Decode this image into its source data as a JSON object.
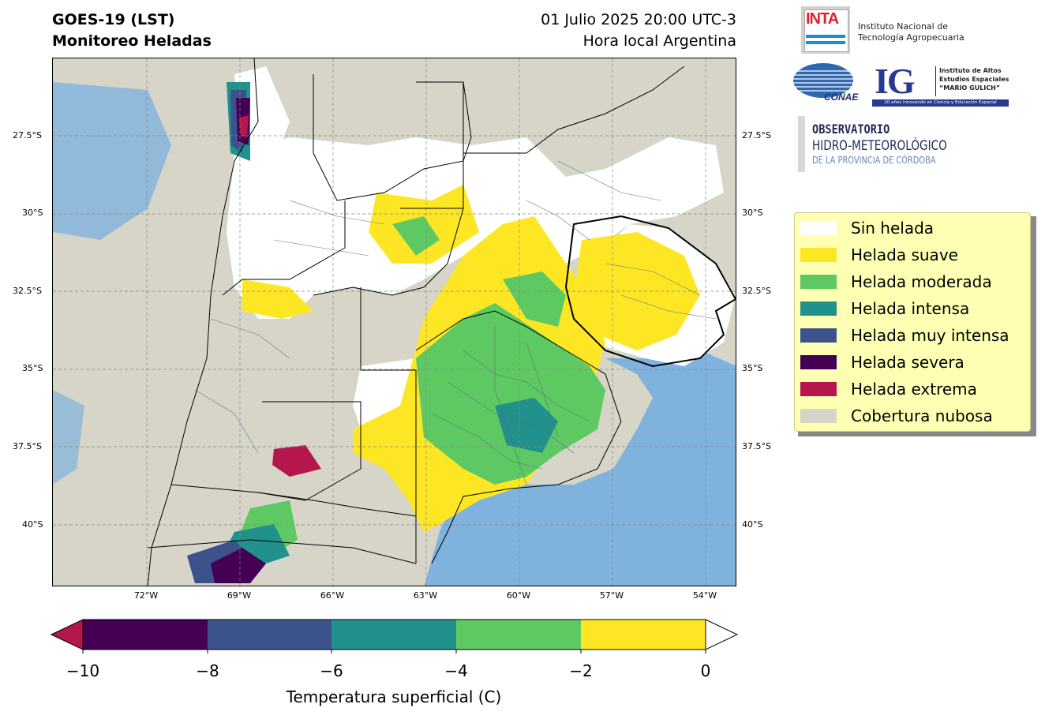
{
  "header": {
    "title_line1": "GOES-19 (LST)",
    "title_line2": "Monitoreo Heladas",
    "datetime": "01 Julio 2025 20:00 UTC-3",
    "timezone_note": "Hora local Argentina"
  },
  "map": {
    "lat_labels": [
      "27.5°S",
      "30°S",
      "32.5°S",
      "35°S",
      "37.5°S",
      "40°S"
    ],
    "lon_labels": [
      "72°W",
      "69°W",
      "66°W",
      "63°W",
      "60°W",
      "57°W",
      "54°W"
    ],
    "colors": {
      "cloud": "#d6d5c8",
      "ocean": "#7fb2dd",
      "no_frost": "#ffffff",
      "mild": "#fde725",
      "moderate": "#5ec962",
      "intense": "#21918c",
      "very_intense": "#3b528b",
      "severe": "#440154",
      "extreme": "#b5164b"
    }
  },
  "logos": {
    "inta_word": "INTA",
    "inta_name_line1": "Instituto Nacional de",
    "inta_name_line2": "Tecnología Agropecuaria",
    "conae_word": "CONAE",
    "ig_letters": "IG",
    "ig_line1": "Instituto de Altos",
    "ig_line2": "Estudios Espaciales",
    "ig_line3": "“MARIO GULICH”",
    "ig_band": "20 años innovando en Ciencia y Educación Espacial",
    "obs_line1": "OBSERVATORIO",
    "obs_line2": "HIDRO-METEOROLÓGICO",
    "obs_line3": "DE LA PROVINCIA DE CÓRDOBA"
  },
  "legend": {
    "items": [
      {
        "label": "Sin helada",
        "color": "#ffffff"
      },
      {
        "label": "Helada suave",
        "color": "#fde725"
      },
      {
        "label": "Helada moderada",
        "color": "#5ec962"
      },
      {
        "label": "Helada intensa",
        "color": "#21918c"
      },
      {
        "label": "Helada muy intensa",
        "color": "#3b528b"
      },
      {
        "label": "Helada severa",
        "color": "#440154"
      },
      {
        "label": "Helada extrema",
        "color": "#b5164b"
      },
      {
        "label": "Cobertura nubosa",
        "color": "#d6d5c8"
      }
    ]
  },
  "colorbar": {
    "ticks": [
      "−10",
      "−8",
      "−6",
      "−4",
      "−2",
      "0"
    ],
    "label": "Temperatura superficial (C)",
    "segment_colors": [
      "#440154",
      "#3b528b",
      "#21918c",
      "#5ec962",
      "#fde725"
    ],
    "under_color": "#b5164b",
    "over_color": "#ffffff"
  }
}
